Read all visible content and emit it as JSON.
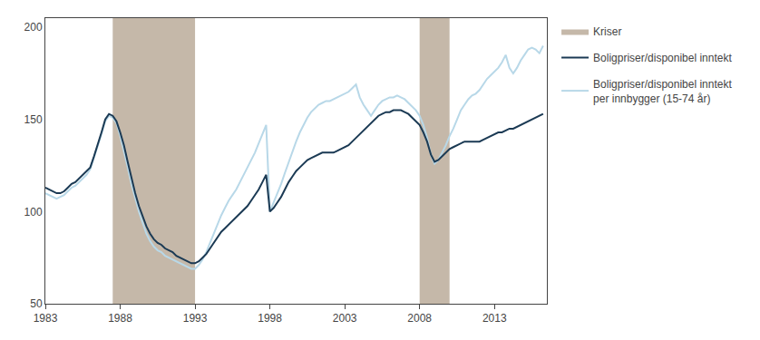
{
  "chart_data": {
    "type": "line",
    "x": [
      1983.0,
      1983.25,
      1983.5,
      1983.75,
      1984.0,
      1984.25,
      1984.5,
      1984.75,
      1985.0,
      1985.25,
      1985.5,
      1985.75,
      1986.0,
      1986.25,
      1986.5,
      1986.75,
      1987.0,
      1987.25,
      1987.5,
      1987.75,
      1988.0,
      1988.25,
      1988.5,
      1988.75,
      1989.0,
      1989.25,
      1989.5,
      1989.75,
      1990.0,
      1990.25,
      1990.5,
      1990.75,
      1991.0,
      1991.25,
      1991.5,
      1991.75,
      1992.0,
      1992.25,
      1992.5,
      1992.75,
      1993.0,
      1993.25,
      1993.5,
      1993.75,
      1994.0,
      1994.25,
      1994.5,
      1994.75,
      1995.0,
      1995.25,
      1995.5,
      1995.75,
      1996.0,
      1996.25,
      1996.5,
      1996.75,
      1997.0,
      1997.25,
      1997.5,
      1997.75,
      1998.0,
      1998.25,
      1998.5,
      1998.75,
      1999.0,
      1999.25,
      1999.5,
      1999.75,
      2000.0,
      2000.25,
      2000.5,
      2000.75,
      2001.0,
      2001.25,
      2001.5,
      2001.75,
      2002.0,
      2002.25,
      2002.5,
      2002.75,
      2003.0,
      2003.25,
      2003.5,
      2003.75,
      2004.0,
      2004.25,
      2004.5,
      2004.75,
      2005.0,
      2005.25,
      2005.5,
      2005.75,
      2006.0,
      2006.25,
      2006.5,
      2006.75,
      2007.0,
      2007.25,
      2007.5,
      2007.75,
      2008.0,
      2008.25,
      2008.5,
      2008.75,
      2009.0,
      2009.25,
      2009.5,
      2009.75,
      2010.0,
      2010.25,
      2010.5,
      2010.75,
      2011.0,
      2011.25,
      2011.5,
      2011.75,
      2012.0,
      2012.25,
      2012.5,
      2012.75,
      2013.0,
      2013.25,
      2013.5,
      2013.75,
      2014.0,
      2014.25,
      2014.5,
      2014.75,
      2015.0,
      2015.25,
      2015.5,
      2015.75,
      2016.0,
      2016.25
    ],
    "series": [
      {
        "name": "Boligpriser/disponibel inntekt",
        "color": "#1b3a54",
        "values": [
          113,
          112,
          111,
          110,
          110,
          111,
          113,
          115,
          116,
          118,
          120,
          122,
          124,
          130,
          136,
          143,
          150,
          153,
          152,
          149,
          143,
          136,
          127,
          118,
          110,
          103,
          97,
          92,
          88,
          85,
          83,
          82,
          80,
          79,
          78,
          76,
          75,
          74,
          73,
          72,
          72,
          73,
          75,
          77,
          80,
          83,
          86,
          89,
          91,
          93,
          95,
          97,
          99,
          101,
          103,
          106,
          109,
          112,
          116,
          120,
          100,
          102,
          105,
          108,
          112,
          116,
          119,
          122,
          124,
          126,
          128,
          129,
          130,
          131,
          132,
          132,
          132,
          132,
          133,
          134,
          135,
          136,
          138,
          140,
          142,
          144,
          146,
          148,
          150,
          152,
          153,
          154,
          154,
          155,
          155,
          155,
          154,
          153,
          151,
          149,
          147,
          143,
          138,
          131,
          127,
          128,
          130,
          132,
          134,
          135,
          136,
          137,
          138,
          138,
          138,
          138,
          138,
          139,
          140,
          141,
          142,
          143,
          143,
          144,
          145,
          145,
          146,
          147,
          148,
          149,
          150,
          151,
          152,
          153
        ]
      },
      {
        "name": "Boligpriser/disponibel inntekt\nper innbygger (15-74 år)",
        "color": "#b8d8e8",
        "values": [
          110,
          109,
          108,
          107,
          108,
          109,
          111,
          113,
          114,
          116,
          118,
          120,
          123,
          129,
          135,
          142,
          149,
          152,
          151,
          148,
          141,
          133,
          124,
          115,
          107,
          100,
          94,
          88,
          84,
          81,
          79,
          78,
          76,
          75,
          74,
          73,
          72,
          71,
          70,
          69,
          69,
          71,
          74,
          78,
          83,
          88,
          93,
          98,
          102,
          106,
          109,
          112,
          116,
          120,
          124,
          128,
          132,
          137,
          142,
          147,
          100,
          105,
          110,
          115,
          121,
          127,
          133,
          138,
          143,
          147,
          151,
          154,
          156,
          158,
          159,
          160,
          160,
          161,
          162,
          163,
          164,
          165,
          167,
          169,
          162,
          158,
          155,
          152,
          155,
          158,
          160,
          161,
          162,
          162,
          163,
          162,
          161,
          159,
          157,
          155,
          152,
          147,
          140,
          131,
          126,
          128,
          132,
          136,
          141,
          145,
          150,
          155,
          158,
          161,
          163,
          164,
          166,
          169,
          172,
          174,
          176,
          178,
          181,
          185,
          178,
          175,
          178,
          182,
          185,
          188,
          189,
          188,
          186,
          190
        ]
      }
    ],
    "bands": {
      "name": "Kriser",
      "color": "#bfb0a0",
      "periods": [
        [
          1987.5,
          1993.0
        ],
        [
          2008.0,
          2010.0
        ]
      ]
    },
    "xlim": [
      1983,
      2016.5
    ],
    "xticks": [
      1983,
      1988,
      1993,
      1998,
      2003,
      2008,
      2013
    ],
    "ylim": [
      50,
      205
    ],
    "yticks": [
      50,
      100,
      150,
      200
    ],
    "grid": false,
    "legend": "right"
  }
}
